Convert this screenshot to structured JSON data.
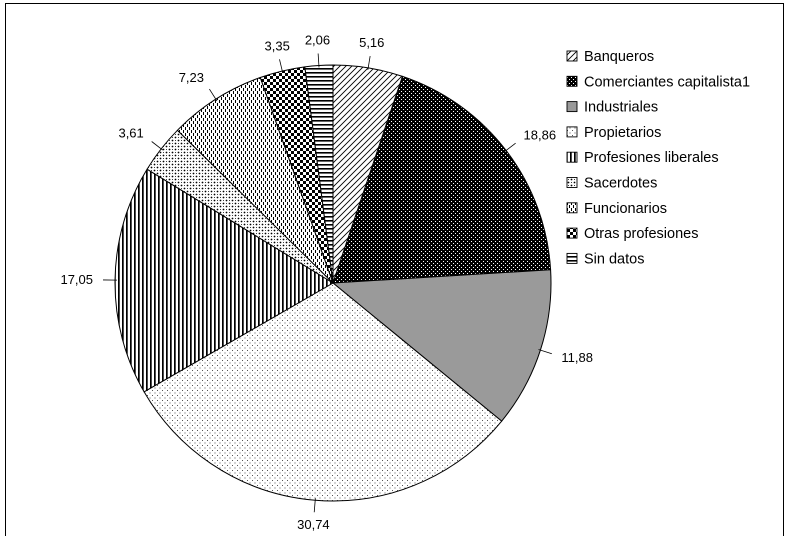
{
  "chart_data": {
    "type": "pie",
    "title": "",
    "labels": [
      "Banqueros",
      "Comerciantes capitalista1",
      "Industriales",
      "Propietarios",
      "Profesiones liberales",
      "Sacerdotes",
      "Funcionarios",
      "Otras profesiones",
      "Sin datos"
    ],
    "values": [
      5.16,
      18.86,
      11.88,
      30.74,
      17.05,
      3.61,
      7.23,
      3.35,
      2.06
    ],
    "value_labels": [
      "5,16",
      "18,86",
      "11,88",
      "30,74",
      "17,05",
      "3,61",
      "7,23",
      "3,35",
      "2,06"
    ],
    "patterns": [
      "diagonal-hatch",
      "dense-black-dots",
      "solid-gray",
      "fine-dots",
      "vertical-stripes",
      "dotted-checker",
      "dashed-vertical",
      "checkerboard",
      "horizontal-stripes"
    ],
    "start": "12-o-clock",
    "direction": "clockwise",
    "legend_position": "right"
  }
}
